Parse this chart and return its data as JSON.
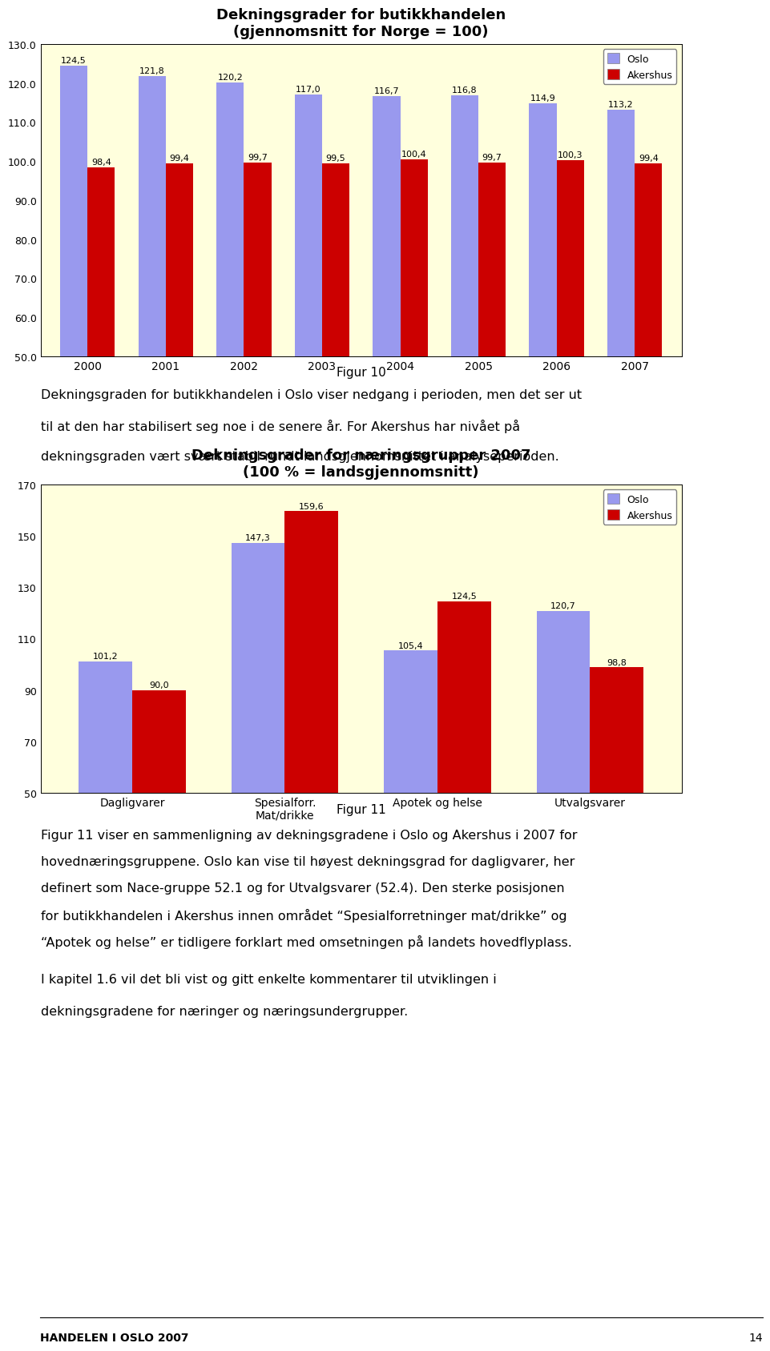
{
  "chart1": {
    "title": "Dekningsgrader for butikkhandelen\n(gjennomsnitt for Norge = 100)",
    "years": [
      "2000",
      "2001",
      "2002",
      "2003",
      "2004",
      "2005",
      "2006",
      "2007"
    ],
    "oslo": [
      124.5,
      121.8,
      120.2,
      117.0,
      116.7,
      116.8,
      114.9,
      113.2
    ],
    "akershus": [
      98.4,
      99.4,
      99.7,
      99.5,
      100.4,
      99.7,
      100.3,
      99.4
    ],
    "ylim": [
      50.0,
      130.0
    ],
    "yticks": [
      50.0,
      60.0,
      70.0,
      80.0,
      90.0,
      100.0,
      110.0,
      120.0,
      130.0
    ],
    "oslo_color": "#9999ee",
    "akershus_color": "#cc0000",
    "bg_color": "#ffffdd",
    "figcaption": "Figur 10"
  },
  "text1_lines": [
    "Dekningsgraden for butikkhandelen i Oslo viser nedgang i perioden, men det ser ut",
    "til at den har stabilisert seg noe i de senere år. For Akershus har nivået på",
    "dekningsgraden vært svært stabil rundt landsgjennomsnittet i analyseperioden."
  ],
  "chart2": {
    "title": "Dekningsgrader for næringsgrupper 2007\n(100 % = landsgjennomsnitt)",
    "categories": [
      "Dagligvarer",
      "Spesialforr.\nMat/drikke",
      "Apotek og helse",
      "Utvalgsvarer"
    ],
    "oslo": [
      101.2,
      147.3,
      105.4,
      120.7
    ],
    "akershus": [
      90.0,
      159.6,
      124.5,
      98.8
    ],
    "ylim": [
      50,
      170
    ],
    "yticks": [
      50,
      70,
      90,
      110,
      130,
      150,
      170
    ],
    "oslo_color": "#9999ee",
    "akershus_color": "#cc0000",
    "bg_color": "#ffffdd",
    "figcaption": "Figur 11"
  },
  "text2_lines": [
    "Figur 11 viser en sammenligning av dekningsgradene i Oslo og Akershus i 2007 for",
    "hovednæringsgruppene. Oslo kan vise til høyest dekningsgrad for dagligvarer, her",
    "definert som Nace-gruppe 52.1 og for Utvalgsvarer (52.4). Den sterke posisjonen",
    "for butikkhandelen i Akershus innen området “Spesialforretninger mat/drikke” og",
    "“Apotek og helse” er tidligere forklart med omsetningen på landets hovedflyplass."
  ],
  "text3_lines": [
    "I kapitel 1.6 vil det bli vist og gitt enkelte kommentarer til utviklingen i",
    "dekningsgradene for næringer og næringsundergrupper."
  ],
  "footer": "HANDELEN I OSLO 2007",
  "page_number": "14"
}
